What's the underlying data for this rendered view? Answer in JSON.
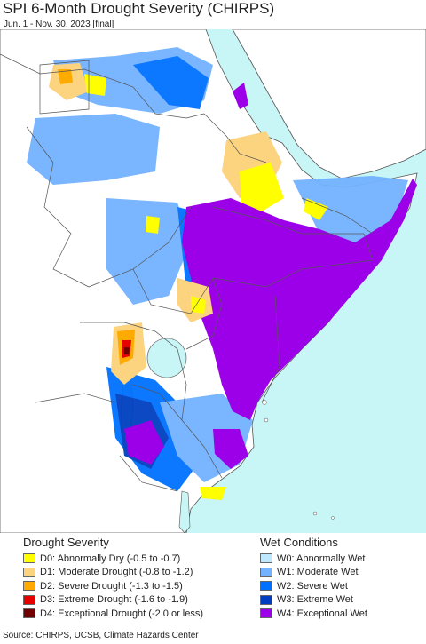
{
  "title": "SPI 6-Month Drought Severity (CHIRPS)",
  "subtitle": "Jun. 1 - Nov. 30, 2023 [final]",
  "legend": {
    "drought": {
      "heading": "Drought Severity",
      "items": [
        {
          "label": "D0: Abnormally Dry (-0.5 to -0.7)",
          "color": "#ffff00"
        },
        {
          "label": "D1: Moderate Drought (-0.8 to -1.2)",
          "color": "#fcd37f"
        },
        {
          "label": "D2: Severe Drought (-1.3 to -1.5)",
          "color": "#ffaa00"
        },
        {
          "label": "D3: Extreme Drought (-1.6 to -1.9)",
          "color": "#e60000"
        },
        {
          "label": "D4: Exceptional Drought (-2.0 or less)",
          "color": "#730000"
        }
      ]
    },
    "wet": {
      "heading": "Wet Conditions",
      "items": [
        {
          "label": "W0: Abnormally Wet",
          "color": "#bee8ff"
        },
        {
          "label": "W1: Moderate Wet",
          "color": "#73b2ff"
        },
        {
          "label": "W2: Severe Wet",
          "color": "#0070ff"
        },
        {
          "label": "W3: Extreme Wet",
          "color": "#0040c0"
        },
        {
          "label": "W4: Exceptional Wet",
          "color": "#9b00e8"
        }
      ]
    }
  },
  "source": "Source: CHIRPS, UCSB, Climate Hazards Center",
  "colors": {
    "water": "#c8f5f5",
    "land": "#ffffff",
    "border": "#555555"
  }
}
